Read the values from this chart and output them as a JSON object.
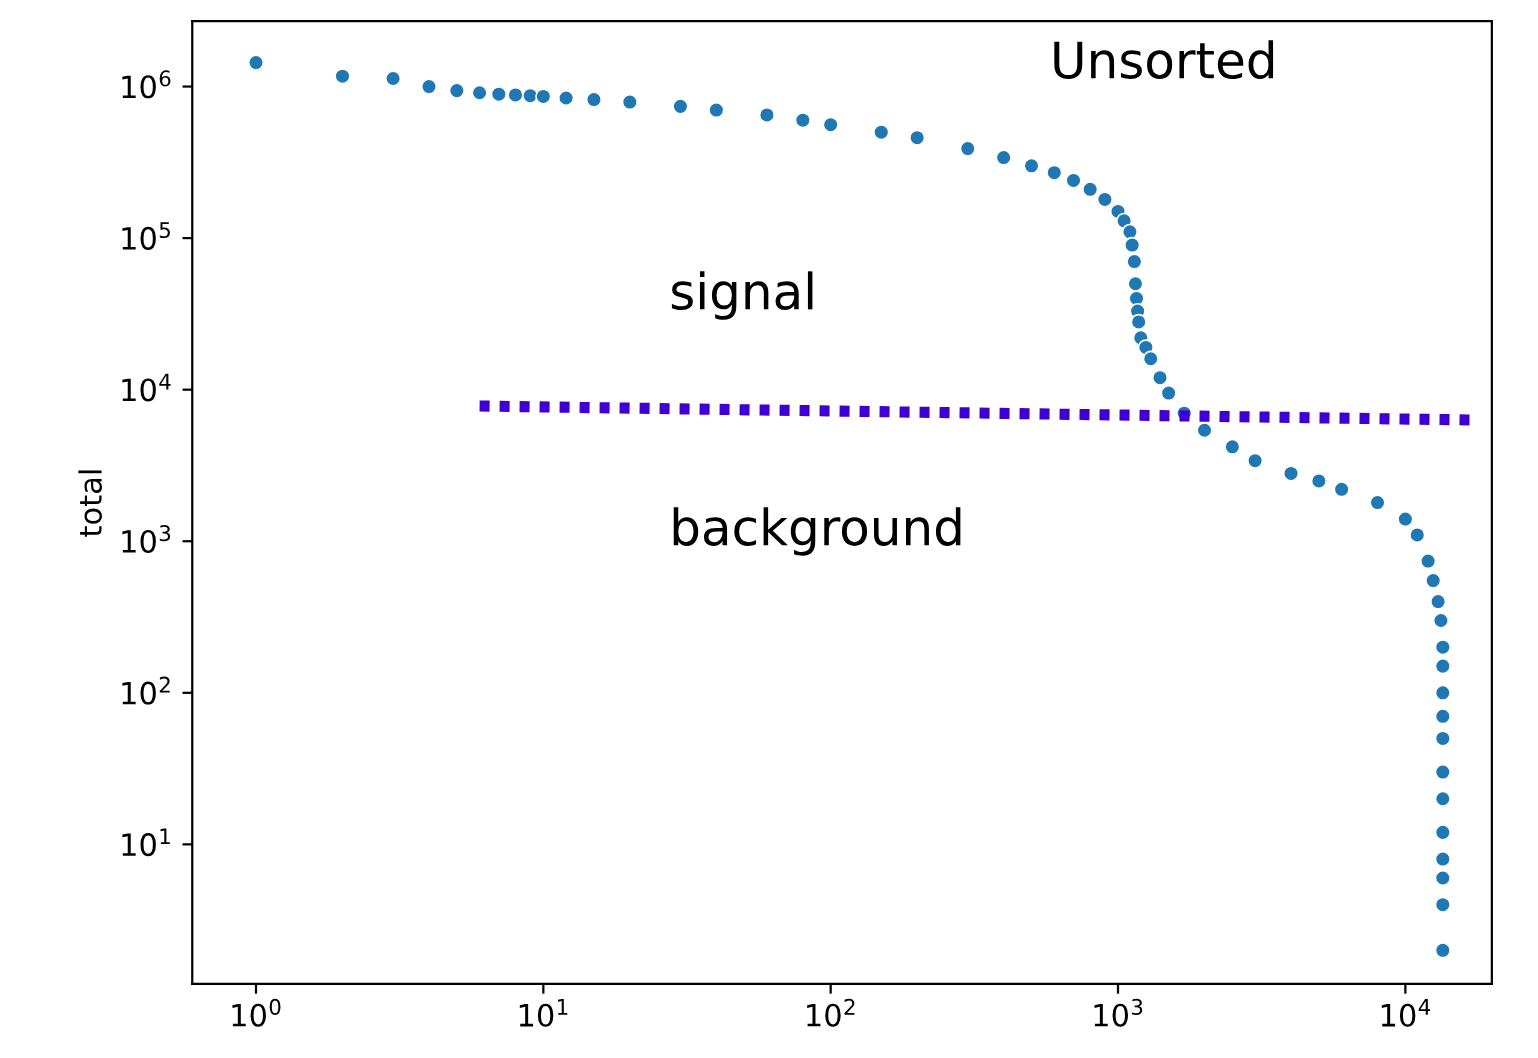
{
  "chart_data": {
    "type": "scatter",
    "ylabel": "total",
    "log": "xy",
    "marker": "circle",
    "grid": false,
    "xlim": [
      0.6,
      20000
    ],
    "ylim": [
      1.2,
      2700000
    ],
    "xticks": [
      {
        "value": 1,
        "label": "10$^{0}$"
      },
      {
        "value": 10,
        "label": "10$^{1}$"
      },
      {
        "value": 100,
        "label": "10$^{2}$"
      },
      {
        "value": 1000,
        "label": "10$^{3}$"
      },
      {
        "value": 10000,
        "label": "10$^{4}$"
      }
    ],
    "yticks": [
      {
        "value": 10,
        "label": "10$^{1}$"
      },
      {
        "value": 100,
        "label": "10$^{2}$"
      },
      {
        "value": 1000,
        "label": "10$^{3}$"
      },
      {
        "value": 10000,
        "label": "10$^{4}$"
      },
      {
        "value": 100000,
        "label": "10$^{5}$"
      },
      {
        "value": 1000000,
        "label": "10$^{6}$"
      }
    ],
    "series": [
      {
        "color": "#1f77b4",
        "x": [
          1,
          2,
          3,
          4,
          5,
          6,
          7,
          8,
          9,
          10,
          12,
          15,
          20,
          30,
          40,
          60,
          80,
          100,
          150,
          200,
          300,
          400,
          500,
          600,
          700,
          800,
          900,
          1000,
          1050,
          1100,
          1120,
          1140,
          1150,
          1160,
          1170,
          1180,
          1200,
          1250,
          1300,
          1400,
          1500,
          1700,
          2000,
          2500,
          3000,
          4000,
          5000,
          6000,
          8000,
          10000,
          11000,
          12000,
          12500,
          13000,
          13300,
          13500,
          13500,
          13500,
          13500,
          13500,
          13500,
          13500,
          13500,
          13500,
          13500,
          13500,
          13500
        ],
        "values": [
          1440000,
          1170000,
          1130000,
          1000000,
          940000,
          910000,
          890000,
          880000,
          870000,
          860000,
          840000,
          820000,
          790000,
          740000,
          700000,
          650000,
          600000,
          560000,
          500000,
          460000,
          390000,
          340000,
          300000,
          270000,
          240000,
          210000,
          180000,
          150000,
          130000,
          110000,
          90000,
          70000,
          50000,
          40000,
          33000,
          28000,
          22000,
          19000,
          16000,
          12000,
          9500,
          7000,
          5400,
          4200,
          3400,
          2800,
          2500,
          2200,
          1800,
          1400,
          1100,
          740,
          550,
          400,
          300,
          200,
          150,
          100,
          70,
          50,
          30,
          20,
          12,
          8,
          6,
          4,
          2
        ]
      },
      {
        "type": "line",
        "color": "#3f00d4",
        "line_style": "dotted",
        "marker": "none",
        "x": [
          6,
          18000
        ],
        "values": [
          7800,
          6300
        ]
      }
    ],
    "annotations": [
      "Unsorted",
      "signal",
      "background"
    ],
    "legend": false
  }
}
